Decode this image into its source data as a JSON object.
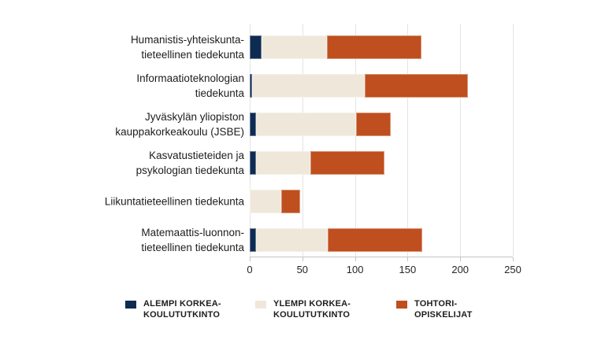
{
  "colors": {
    "alempi": "#0e2b52",
    "ylempi": "#efe8da",
    "tohtori": "#bf4f1e",
    "gridline": "#e4e4e4",
    "axis": "#c4c4c4",
    "text": "#1d1d1d"
  },
  "chart_data": {
    "type": "bar",
    "orientation": "horizontal",
    "stacked": true,
    "grid": true,
    "xlim": [
      0,
      250
    ],
    "x_ticks": [
      0,
      50,
      100,
      150,
      200,
      250
    ],
    "categories": [
      [
        "Humanistis-yhteiskunta-",
        "tieteellinen tiedekunta"
      ],
      [
        "Informaatioteknologian",
        "tiedekunta"
      ],
      [
        "Jyväskylän yliopiston",
        "kauppakorkeakoulu (JSBE)"
      ],
      [
        "Kasvatustieteiden ja",
        "psykologian tiedekunta"
      ],
      [
        "Liikuntatieteellinen tiedekunta"
      ],
      [
        "Matemaattis-luonnon-",
        "tieteellinen tiedekunta"
      ]
    ],
    "series": [
      {
        "name": "ALEMPI KORKEAKOULUTUTKINTO",
        "color": "#0e2b52",
        "values": [
          11,
          2,
          6,
          6,
          0,
          6
        ]
      },
      {
        "name": "YLEMPI KORKEAKOULUTUTKINTO",
        "color": "#efe8da",
        "values": [
          62,
          107,
          95,
          52,
          30,
          68
        ]
      },
      {
        "name": "TOHTORIOPISKELIJAT",
        "color": "#bf4f1e",
        "values": [
          90,
          98,
          33,
          70,
          18,
          90
        ]
      }
    ],
    "totals": [
      163,
      207,
      134,
      128,
      48,
      164
    ],
    "legend_position": "bottom",
    "legend": [
      {
        "label_lines": [
          "ALEMPI KORKEA-",
          "KOULUTUTKINTO"
        ],
        "color": "#0e2b52"
      },
      {
        "label_lines": [
          "YLEMPI KORKEA-",
          "KOULUTUTKINTO"
        ],
        "color": "#efe8da"
      },
      {
        "label_lines": [
          "TOHTORI-",
          "OPISKELIJAT"
        ],
        "color": "#bf4f1e"
      }
    ]
  }
}
